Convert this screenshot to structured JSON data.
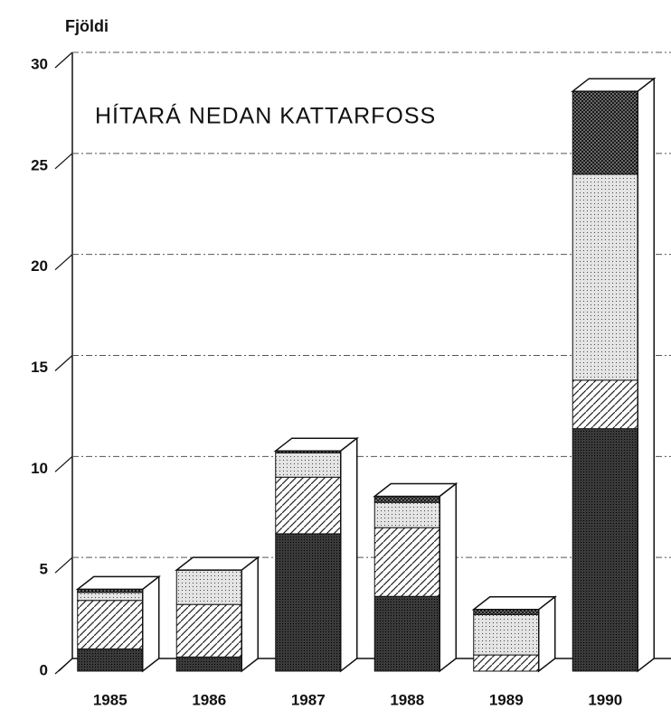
{
  "chart_data": {
    "type": "bar",
    "stacked": true,
    "ylabel": "Fjöldi",
    "annotation": "HÍTARÁ NEDAN KATTARFOSS",
    "categories": [
      "1985",
      "1986",
      "1987",
      "1988",
      "1989",
      "1990"
    ],
    "series": [
      {
        "color": "#3a3a3a",
        "values": [
          1.1,
          0.7,
          6.8,
          3.7,
          0,
          12
        ]
      },
      {
        "color": "#ffffff",
        "values": [
          2.4,
          2.6,
          2.8,
          3.4,
          0.8,
          2.4
        ]
      },
      {
        "color": "#e4e4e4",
        "values": [
          0.4,
          1.7,
          1.2,
          1.25,
          2.0,
          10.2
        ]
      },
      {
        "color": "#8a8a8a",
        "values": [
          0.15,
          0,
          0.1,
          0.3,
          0.25,
          4.1
        ]
      }
    ],
    "ylim": [
      0,
      30
    ],
    "yticks": [
      0,
      5,
      10,
      15,
      20,
      25,
      30
    ],
    "grid": true
  }
}
